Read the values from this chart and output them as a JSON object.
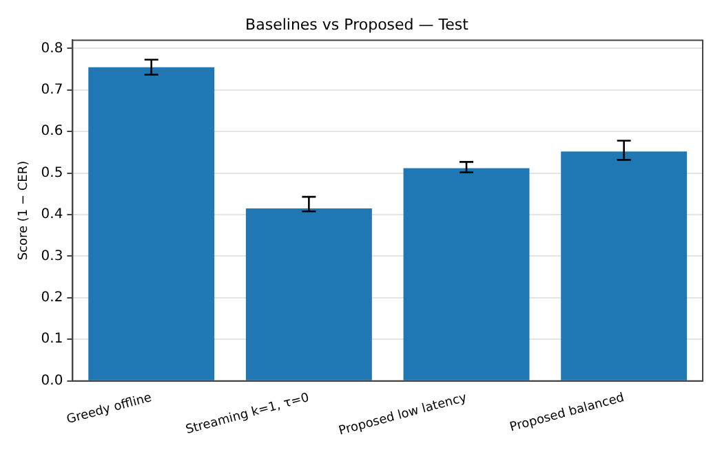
{
  "chart_data": {
    "type": "bar",
    "title": "Baselines vs Proposed — Test",
    "ylabel": "Score (1 − CER)",
    "categories": [
      "Greedy offline",
      "Streaming k=1, τ=0",
      "Proposed low latency",
      "Proposed balanced"
    ],
    "values": [
      0.755,
      0.415,
      0.512,
      0.552
    ],
    "color": "#1f77b4",
    "errors": [
      [
        0.737,
        0.773
      ],
      [
        0.408,
        0.443
      ],
      [
        0.502,
        0.527
      ],
      [
        0.532,
        0.578
      ]
    ],
    "ylim": [
      0,
      0.82
    ],
    "yticks": [
      {
        "value": 0,
        "label": "0.0"
      },
      0.1,
      0.2,
      0.3,
      0.4,
      0.5,
      0.6,
      0.7,
      0.8
    ],
    "grid": "y"
  }
}
